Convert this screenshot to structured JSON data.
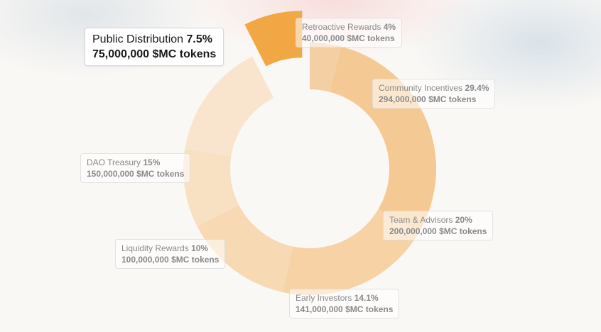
{
  "chart_data": {
    "type": "pie",
    "style": "donut",
    "slices": [
      {
        "label": "Retroactive Rewards",
        "percent": 4,
        "value": 40000000,
        "pct_text": "4%",
        "amount_text": "40,000,000 $MC tokens",
        "color": "#f3cfa3"
      },
      {
        "label": "Community Incentives",
        "percent": 29.4,
        "value": 294000000,
        "pct_text": "29.4%",
        "amount_text": "294,000,000 $MC tokens",
        "color": "#f5c993"
      },
      {
        "label": "Team & Advisors",
        "percent": 20,
        "value": 200000000,
        "pct_text": "20%",
        "amount_text": "200,000,000 $MC tokens",
        "color": "#f6d2a5"
      },
      {
        "label": "Early Investors",
        "percent": 14.1,
        "value": 141000000,
        "pct_text": "14.1%",
        "amount_text": "141,000,000 $MC tokens",
        "color": "#f7d9b3"
      },
      {
        "label": "Liquidity Rewards",
        "percent": 10,
        "value": 100000000,
        "pct_text": "10%",
        "amount_text": "100,000,000 $MC tokens",
        "color": "#f8e0c2"
      },
      {
        "label": "DAO Treasury",
        "percent": 15,
        "value": 150000000,
        "pct_text": "15%",
        "amount_text": "150,000,000 $MC tokens",
        "color": "#f9e5cd"
      },
      {
        "label": "Public Distribution",
        "percent": 7.5,
        "value": 75000000,
        "pct_text": "7.5%",
        "amount_text": "75,000,000 $MC tokens",
        "color": "#f2a745",
        "highlighted": true
      }
    ]
  }
}
